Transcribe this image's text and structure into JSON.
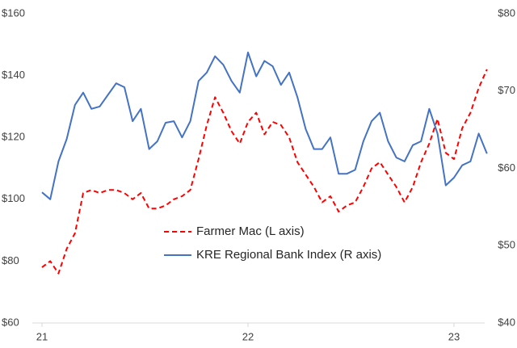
{
  "chart_data": {
    "type": "line",
    "x": [
      21.0,
      21.04,
      21.08,
      21.12,
      21.16,
      21.2,
      21.24,
      21.28,
      21.32,
      21.36,
      21.4,
      21.44,
      21.48,
      21.52,
      21.56,
      21.6,
      21.64,
      21.68,
      21.72,
      21.76,
      21.8,
      21.84,
      21.88,
      21.92,
      21.96,
      22.0,
      22.04,
      22.08,
      22.12,
      22.16,
      22.2,
      22.24,
      22.28,
      22.32,
      22.36,
      22.4,
      22.44,
      22.48,
      22.52,
      22.56,
      22.6,
      22.64,
      22.68,
      22.72,
      22.76,
      22.8,
      22.84,
      22.88,
      22.92,
      22.96,
      23.0,
      23.04,
      23.08,
      23.12,
      23.16
    ],
    "series": [
      {
        "name": "Farmer Mac (L axis)",
        "color": "#ff0000",
        "dash": true,
        "values": [
          78,
          80,
          76,
          84,
          89,
          102,
          103,
          102,
          103,
          103,
          102,
          100,
          102,
          97,
          97,
          98,
          100,
          101,
          103,
          113,
          124,
          133,
          128,
          122,
          118,
          125,
          128,
          121,
          125,
          124,
          120,
          112,
          108,
          104,
          99,
          101,
          96,
          98,
          99,
          104,
          110,
          112,
          108,
          104,
          99,
          104,
          112,
          118,
          126,
          115,
          113,
          123,
          128,
          136,
          142
        ]
      },
      {
        "name": "KRE Regional Bank Index (R axis)",
        "color": "#4472c4",
        "axis": "y2",
        "values": [
          56.9,
          56,
          60.9,
          63.8,
          68.2,
          69.8,
          67.7,
          68,
          69.5,
          71,
          70.5,
          66.1,
          67.7,
          62.5,
          63.5,
          65.9,
          66.1,
          64,
          66.1,
          71.3,
          72.4,
          74.5,
          73.4,
          71.3,
          69.8,
          75,
          71.9,
          73.9,
          73.2,
          70.8,
          72.4,
          69.2,
          65.1,
          62.5,
          62.5,
          64,
          59.3,
          59.3,
          59.8,
          63.5,
          66.1,
          67.2,
          63.5,
          61.4,
          60.9,
          63,
          63.5,
          67.7,
          64.5,
          57.8,
          58.8,
          60.4,
          60.9,
          64.5,
          61.9
        ]
      }
    ],
    "xlim": [
      21,
      23.22
    ],
    "xticks": [
      21,
      22,
      23
    ],
    "ylim": [
      60,
      160
    ],
    "yticks": [
      {
        "value": 60,
        "label": "$60"
      },
      {
        "value": 80,
        "label": "$80"
      },
      {
        "value": 100,
        "label": "$100"
      },
      {
        "value": 120,
        "label": "$120"
      },
      {
        "value": 140,
        "label": "$140"
      },
      {
        "value": 160,
        "label": "$160"
      }
    ],
    "y2lim": [
      40,
      80
    ],
    "y2ticks": [
      {
        "value": 40,
        "label": "$40"
      },
      {
        "value": 50,
        "label": "$50"
      },
      {
        "value": 60,
        "label": "$60"
      },
      {
        "value": 70,
        "label": "$70"
      },
      {
        "value": 80,
        "label": "$80"
      }
    ],
    "grid": false
  }
}
